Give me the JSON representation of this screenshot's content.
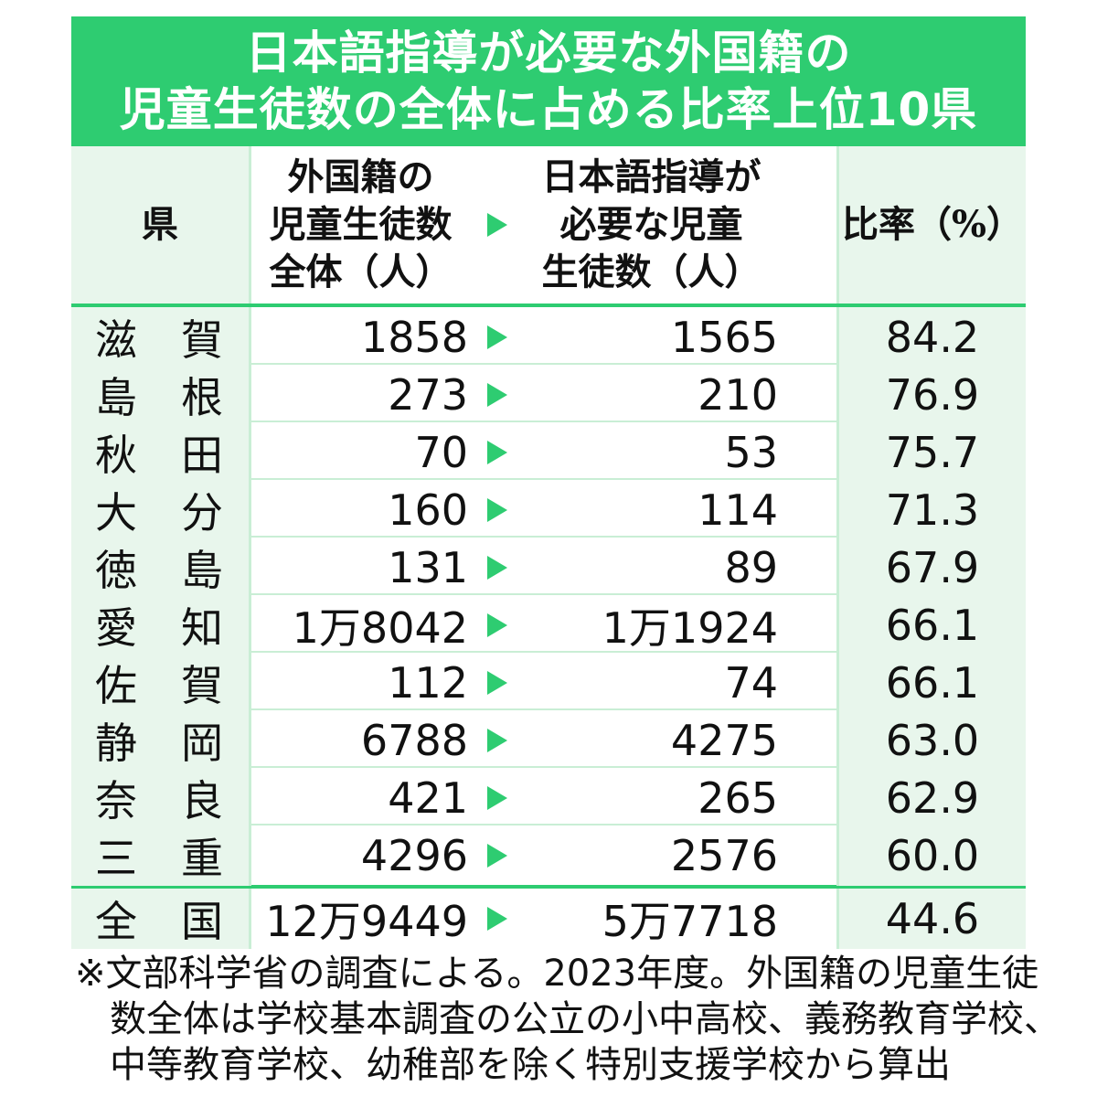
{
  "title": {
    "line1": "日本語指導が必要な外国籍の",
    "line2": "児童生徒数の全体に占める比率上位10県"
  },
  "headers": {
    "pref": "県",
    "total": "外国籍の\n児童生徒数\n全体（人）",
    "need": "日本語指導が\n必要な児童\n生徒数（人）",
    "ratio": "比率（%）"
  },
  "rows": [
    {
      "pref_a": "滋",
      "pref_b": "賀",
      "total": "1858",
      "need": "1565",
      "ratio": "84.2"
    },
    {
      "pref_a": "島",
      "pref_b": "根",
      "total": "273",
      "need": "210",
      "ratio": "76.9"
    },
    {
      "pref_a": "秋",
      "pref_b": "田",
      "total": "70",
      "need": "53",
      "ratio": "75.7"
    },
    {
      "pref_a": "大",
      "pref_b": "分",
      "total": "160",
      "need": "114",
      "ratio": "71.3"
    },
    {
      "pref_a": "徳",
      "pref_b": "島",
      "total": "131",
      "need": "89",
      "ratio": "67.9"
    },
    {
      "pref_a": "愛",
      "pref_b": "知",
      "total": "1万8042",
      "need": "1万1924",
      "ratio": "66.1"
    },
    {
      "pref_a": "佐",
      "pref_b": "賀",
      "total": "112",
      "need": "74",
      "ratio": "66.1"
    },
    {
      "pref_a": "静",
      "pref_b": "岡",
      "total": "6788",
      "need": "4275",
      "ratio": "63.0"
    },
    {
      "pref_a": "奈",
      "pref_b": "良",
      "total": "421",
      "need": "265",
      "ratio": "62.9"
    },
    {
      "pref_a": "三",
      "pref_b": "重",
      "total": "4296",
      "need": "2576",
      "ratio": "60.0"
    }
  ],
  "national": {
    "pref_a": "全",
    "pref_b": "国",
    "total": "12万9449",
    "need": "5万7718",
    "ratio": "44.6"
  },
  "note": {
    "line1": "※文部科学省の調査による。2023年度。外国籍の児童生徒",
    "line2": "数全体は学校基本調査の公立の小中高校、義務教育学校、",
    "line3": "中等教育学校、幼稚部を除く特別支援学校から算出"
  },
  "colors": {
    "accent": "#2ecc71",
    "tint": "#e8f6ec"
  }
}
